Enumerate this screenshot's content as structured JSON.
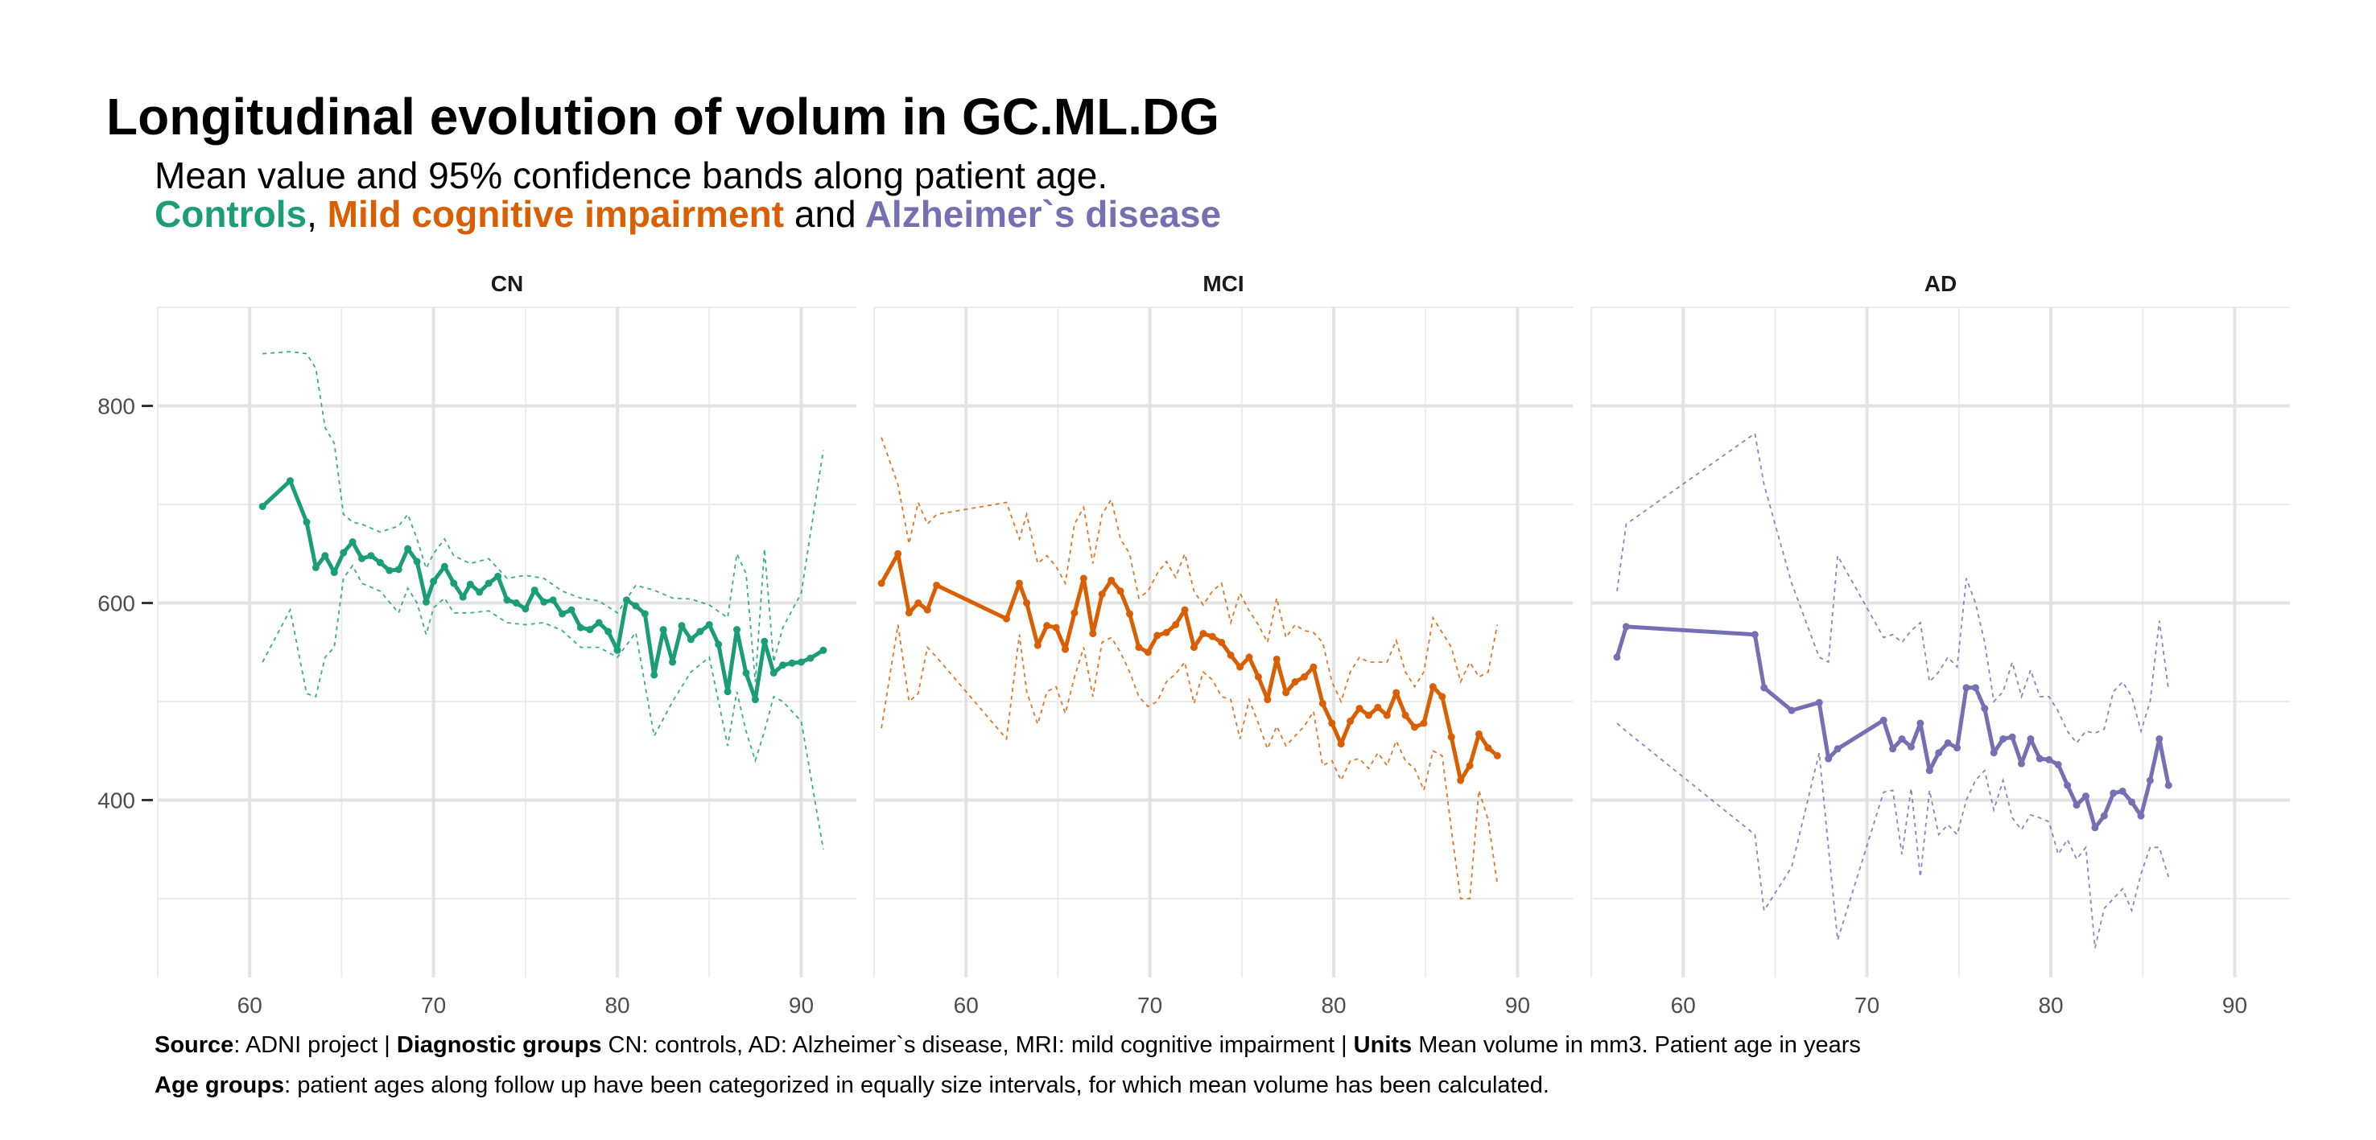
{
  "title": "Longitudinal evolution of volum in GC.ML.DG",
  "subtitle": {
    "line1": "Mean value and 95% confidence bands along patient age.",
    "controls": "Controls",
    "comma": ",",
    "mci": "Mild cognitive impairment",
    "and": "and",
    "ad": "Alzheimer`s disease"
  },
  "caption": {
    "source_label": "Source",
    "source_text": ": ADNI project | ",
    "groups_label": "Diagnostic groups",
    "groups_text": " CN: controls, AD: Alzheimer`s disease, MRI: mild cognitive impairment | ",
    "units_label": "Units",
    "units_text": " Mean volume in mm3. Patient age in years",
    "age_label": "Age groups",
    "age_text": ": patient ages along follow up have been categorized in equally size intervals, for which mean volume has been calculated."
  },
  "colors": {
    "CN": "#1b9e77",
    "MCI": "#d95f02",
    "AD": "#7570b3"
  },
  "chart_data": {
    "type": "line",
    "title": "Longitudinal evolution of volum in GC.ML.DG",
    "xlabel": "",
    "ylabel": "",
    "xlim": [
      55,
      93
    ],
    "ylim": [
      220,
      900
    ],
    "x_ticks": [
      60,
      70,
      80,
      90
    ],
    "y_ticks": [
      400,
      600,
      800
    ],
    "grid": true,
    "panels": [
      {
        "name": "CN",
        "series": [
          {
            "name": "Controls",
            "role": "mean",
            "x": [
              60.7,
              62.2,
              63.1,
              63.6,
              64.1,
              64.6,
              65.1,
              65.6,
              66.1,
              66.6,
              67.1,
              67.6,
              68.1,
              68.6,
              69.1,
              69.6,
              70.0,
              70.6,
              71.1,
              71.6,
              72.0,
              72.5,
              73.0,
              73.5,
              74.0,
              74.5,
              75.0,
              75.5,
              76.0,
              76.5,
              77.0,
              77.5,
              78.0,
              78.5,
              79.0,
              79.5,
              80.0,
              80.5,
              81.0,
              81.5,
              82.0,
              82.5,
              83.0,
              83.5,
              84.0,
              84.5,
              85.0,
              85.5,
              86.0,
              86.5,
              87.0,
              87.5,
              88.0,
              88.5,
              89.0,
              89.5,
              90.0,
              90.5,
              91.2
            ],
            "y": [
              698,
              724,
              682,
              636,
              648,
              631,
              651,
              662,
              645,
              648,
              641,
              633,
              634,
              655,
              642,
              601,
              622,
              637,
              620,
              606,
              619,
              611,
              620,
              627,
              603,
              600,
              594,
              613,
              601,
              603,
              589,
              593,
              575,
              573,
              580,
              571,
              552,
              603,
              597,
              589,
              527,
              573,
              540,
              577,
              563,
              571,
              578,
              558,
              510,
              573,
              529,
              502,
              561,
              529,
              537,
              539,
              540,
              544,
              552
            ]
          },
          {
            "name": "Controls upper 95%",
            "role": "upper",
            "x": [
              60.7,
              62.2,
              63.1,
              63.6,
              64.1,
              64.6,
              65.1,
              65.6,
              66.1,
              67.1,
              68.1,
              68.6,
              69.1,
              69.6,
              70.0,
              70.6,
              71.1,
              72.0,
              73.0,
              74.0,
              75.0,
              76.0,
              77.0,
              78.0,
              79.0,
              80.0,
              81.0,
              82.0,
              83.0,
              84.0,
              85.0,
              86.0,
              86.5,
              87.0,
              87.5,
              88.0,
              88.5,
              89.0,
              90.0,
              91.2
            ],
            "y": [
              853,
              855,
              853,
              838,
              778,
              762,
              690,
              682,
              680,
              672,
              678,
              690,
              665,
              635,
              650,
              665,
              648,
              640,
              645,
              625,
              628,
              625,
              612,
              605,
              602,
              590,
              618,
              613,
              605,
              604,
              598,
              585,
              650,
              630,
              520,
              655,
              540,
              575,
              610,
              755
            ]
          },
          {
            "name": "Controls lower 95%",
            "role": "lower",
            "x": [
              60.7,
              62.2,
              63.1,
              63.6,
              64.1,
              64.6,
              65.1,
              65.6,
              66.1,
              67.1,
              68.1,
              68.6,
              69.1,
              69.6,
              70.0,
              70.6,
              71.1,
              72.0,
              73.0,
              74.0,
              75.0,
              76.0,
              77.0,
              78.0,
              79.0,
              80.0,
              81.0,
              82.0,
              83.0,
              84.0,
              85.0,
              86.0,
              86.5,
              87.0,
              87.5,
              88.0,
              88.5,
              89.0,
              90.0,
              91.2
            ],
            "y": [
              540,
              593,
              508,
              505,
              545,
              555,
              625,
              638,
              620,
              612,
              590,
              615,
              600,
              568,
              595,
              605,
              590,
              590,
              592,
              580,
              578,
              580,
              572,
              555,
              555,
              545,
              570,
              465,
              500,
              530,
              545,
              455,
              510,
              470,
              440,
              470,
              505,
              500,
              480,
              350
            ]
          }
        ]
      },
      {
        "name": "MCI",
        "series": [
          {
            "name": "Mild cognitive impairment",
            "role": "mean",
            "x": [
              55.4,
              56.3,
              56.9,
              57.4,
              57.9,
              58.4,
              62.2,
              62.9,
              63.3,
              63.9,
              64.4,
              64.9,
              65.4,
              65.9,
              66.4,
              66.9,
              67.4,
              67.9,
              68.4,
              68.9,
              69.4,
              69.9,
              70.4,
              70.9,
              71.4,
              71.9,
              72.4,
              72.9,
              73.4,
              73.9,
              74.4,
              74.9,
              75.4,
              75.9,
              76.4,
              76.9,
              77.4,
              77.9,
              78.4,
              78.9,
              79.4,
              79.9,
              80.4,
              80.9,
              81.4,
              81.9,
              82.4,
              82.9,
              83.4,
              83.9,
              84.4,
              84.9,
              85.4,
              85.9,
              86.4,
              86.9,
              87.4,
              87.9,
              88.4,
              88.9
            ],
            "y": [
              620,
              650,
              590,
              600,
              593,
              618,
              584,
              620,
              600,
              557,
              577,
              575,
              553,
              590,
              625,
              569,
              609,
              623,
              612,
              589,
              555,
              550,
              567,
              570,
              578,
              593,
              555,
              569,
              566,
              560,
              547,
              535,
              545,
              525,
              502,
              543,
              509,
              520,
              525,
              535,
              498,
              478,
              457,
              480,
              493,
              486,
              494,
              486,
              509,
              486,
              474,
              478,
              515,
              505,
              464,
              420,
              435,
              467,
              453,
              445
            ]
          },
          {
            "name": "MCI upper 95%",
            "role": "upper",
            "x": [
              55.4,
              56.3,
              56.9,
              57.4,
              57.9,
              58.4,
              62.2,
              62.9,
              63.3,
              63.9,
              64.4,
              64.9,
              65.4,
              65.9,
              66.4,
              66.9,
              67.4,
              67.9,
              68.4,
              68.9,
              69.4,
              69.9,
              70.4,
              70.9,
              71.4,
              71.9,
              72.4,
              72.9,
              73.4,
              73.9,
              74.4,
              74.9,
              75.4,
              75.9,
              76.4,
              76.9,
              77.4,
              77.9,
              78.4,
              78.9,
              79.4,
              79.9,
              80.4,
              80.9,
              81.4,
              81.9,
              82.4,
              82.9,
              83.4,
              83.9,
              84.4,
              84.9,
              85.4,
              85.9,
              86.4,
              86.9,
              87.4,
              87.9,
              88.4,
              88.9
            ],
            "y": [
              768,
              720,
              660,
              702,
              680,
              690,
              702,
              665,
              690,
              640,
              648,
              637,
              620,
              680,
              697,
              640,
              690,
              705,
              665,
              650,
              605,
              612,
              630,
              642,
              626,
              650,
              612,
              598,
              612,
              620,
              580,
              610,
              592,
              578,
              560,
              605,
              565,
              578,
              572,
              570,
              560,
              520,
              500,
              530,
              545,
              540,
              540,
              540,
              562,
              530,
              515,
              530,
              585,
              570,
              555,
              520,
              540,
              525,
              530,
              578
            ]
          },
          {
            "name": "MCI lower 95%",
            "role": "lower",
            "x": [
              55.4,
              56.3,
              56.9,
              57.4,
              57.9,
              58.4,
              62.2,
              62.9,
              63.3,
              63.9,
              64.4,
              64.9,
              65.4,
              65.9,
              66.4,
              66.9,
              67.4,
              67.9,
              68.4,
              68.9,
              69.4,
              69.9,
              70.4,
              70.9,
              71.4,
              71.9,
              72.4,
              72.9,
              73.4,
              73.9,
              74.4,
              74.9,
              75.4,
              75.9,
              76.4,
              76.9,
              77.4,
              77.9,
              78.4,
              78.9,
              79.4,
              79.9,
              80.4,
              80.9,
              81.4,
              81.9,
              82.4,
              82.9,
              83.4,
              83.9,
              84.4,
              84.9,
              85.4,
              85.9,
              86.4,
              86.9,
              87.4,
              87.9,
              88.4,
              88.9
            ],
            "y": [
              473,
              578,
              500,
              508,
              555,
              545,
              462,
              568,
              510,
              477,
              510,
              515,
              488,
              525,
              555,
              505,
              560,
              565,
              550,
              530,
              505,
              495,
              500,
              520,
              528,
              540,
              498,
              530,
              522,
              505,
              502,
              462,
              502,
              478,
              452,
              475,
              455,
              465,
              475,
              490,
              435,
              440,
              420,
              440,
              442,
              432,
              448,
              435,
              460,
              440,
              432,
              410,
              450,
              445,
              370,
              300,
              300,
              410,
              380,
              315
            ]
          }
        ]
      },
      {
        "name": "AD",
        "series": [
          {
            "name": "Alzheimer`s disease",
            "role": "mean",
            "x": [
              56.4,
              56.9,
              63.9,
              64.4,
              65.9,
              67.4,
              67.9,
              68.4,
              70.9,
              71.4,
              71.9,
              72.4,
              72.9,
              73.4,
              73.9,
              74.4,
              74.9,
              75.4,
              75.9,
              76.4,
              76.9,
              77.4,
              77.9,
              78.4,
              78.9,
              79.4,
              79.9,
              80.4,
              80.9,
              81.4,
              81.9,
              82.4,
              82.9,
              83.4,
              83.9,
              84.4,
              84.9,
              85.4,
              85.9,
              86.4
            ],
            "y": [
              545,
              576,
              568,
              514,
              491,
              499,
              442,
              452,
              481,
              452,
              462,
              454,
              478,
              430,
              448,
              458,
              453,
              514,
              514,
              493,
              448,
              462,
              464,
              437,
              462,
              442,
              441,
              436,
              415,
              395,
              404,
              372,
              384,
              407,
              409,
              398,
              384,
              420,
              462,
              415
            ]
          },
          {
            "name": "AD upper 95%",
            "role": "upper",
            "x": [
              56.4,
              56.9,
              63.9,
              64.4,
              65.9,
              67.4,
              67.9,
              68.4,
              70.9,
              71.4,
              71.9,
              72.4,
              72.9,
              73.4,
              73.9,
              74.4,
              74.9,
              75.4,
              75.9,
              76.4,
              76.9,
              77.4,
              77.9,
              78.4,
              78.9,
              79.4,
              79.9,
              80.4,
              80.9,
              81.4,
              81.9,
              82.4,
              82.9,
              83.4,
              83.9,
              84.4,
              84.9,
              85.4,
              85.9,
              86.4
            ],
            "y": [
              612,
              680,
              772,
              720,
              620,
              545,
              540,
              648,
              565,
              568,
              560,
              572,
              580,
              520,
              530,
              545,
              535,
              625,
              600,
              560,
              500,
              510,
              540,
              505,
              532,
              505,
              505,
              490,
              470,
              458,
              470,
              468,
              472,
              510,
              520,
              505,
              470,
              500,
              582,
              512
            ]
          },
          {
            "name": "AD lower 95%",
            "role": "lower",
            "x": [
              56.4,
              56.9,
              63.9,
              64.4,
              65.9,
              67.4,
              67.9,
              68.4,
              70.9,
              71.4,
              71.9,
              72.4,
              72.9,
              73.4,
              73.9,
              74.4,
              74.9,
              75.4,
              75.9,
              76.4,
              76.9,
              77.4,
              77.9,
              78.4,
              78.9,
              79.4,
              79.9,
              80.4,
              80.9,
              81.4,
              81.9,
              82.4,
              82.9,
              83.4,
              83.9,
              84.4,
              84.9,
              85.4,
              85.9,
              86.4
            ],
            "y": [
              478,
              470,
              365,
              288,
              332,
              448,
              352,
              258,
              408,
              410,
              345,
              412,
              322,
              410,
              365,
              375,
              365,
              400,
              420,
              430,
              390,
              420,
              382,
              370,
              385,
              382,
              378,
              345,
              360,
              340,
              352,
              250,
              290,
              300,
              310,
              288,
              325,
              352,
              352,
              322
            ]
          }
        ]
      }
    ]
  }
}
